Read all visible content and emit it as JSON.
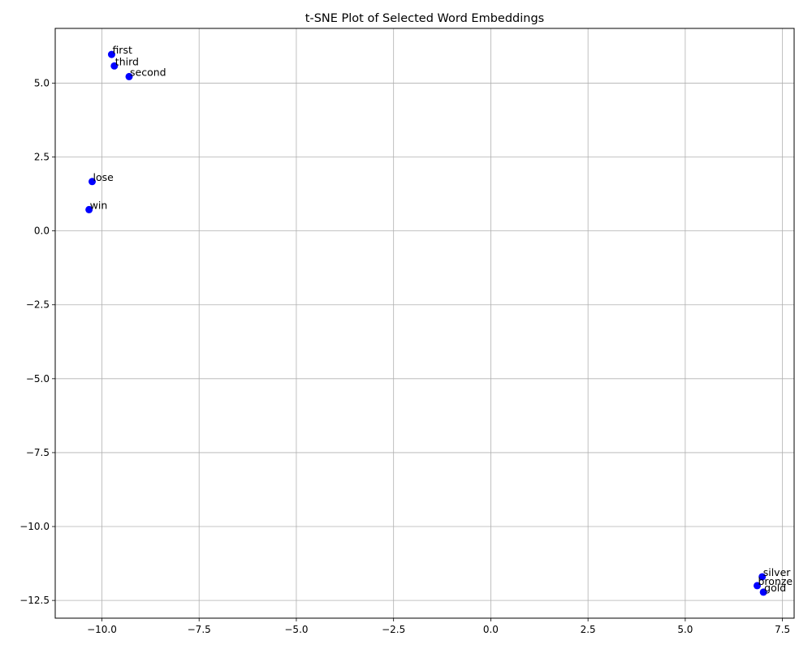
{
  "chart_data": {
    "type": "scatter",
    "title": "t-SNE Plot of Selected Word Embeddings",
    "xlabel": "",
    "ylabel": "",
    "xlim": [
      -11.2,
      7.8
    ],
    "ylim": [
      -13.1,
      6.85
    ],
    "grid": true,
    "point_color": "#0000ff",
    "x_ticks": [
      -10.0,
      -7.5,
      -5.0,
      -2.5,
      0.0,
      2.5,
      5.0,
      7.5
    ],
    "x_tick_labels": [
      "−10.0",
      "−7.5",
      "−5.0",
      "−2.5",
      "0.0",
      "2.5",
      "5.0",
      "7.5"
    ],
    "y_ticks": [
      5.0,
      2.5,
      0.0,
      -2.5,
      -5.0,
      -7.5,
      -10.0,
      -12.5
    ],
    "y_tick_labels": [
      "5.0",
      "2.5",
      "0.0",
      "−2.5",
      "−5.0",
      "−7.5",
      "−10.0",
      "−12.5"
    ],
    "points": [
      {
        "label": "first",
        "x": -9.75,
        "y": 5.97
      },
      {
        "label": "third",
        "x": -9.68,
        "y": 5.58
      },
      {
        "label": "second",
        "x": -9.3,
        "y": 5.22
      },
      {
        "label": "lose",
        "x": -10.25,
        "y": 1.67
      },
      {
        "label": "win",
        "x": -10.33,
        "y": 0.72
      },
      {
        "label": "silver",
        "x": 6.98,
        "y": -11.7
      },
      {
        "label": "bronze",
        "x": 6.85,
        "y": -12.0
      },
      {
        "label": "gold",
        "x": 7.01,
        "y": -12.22
      }
    ]
  }
}
